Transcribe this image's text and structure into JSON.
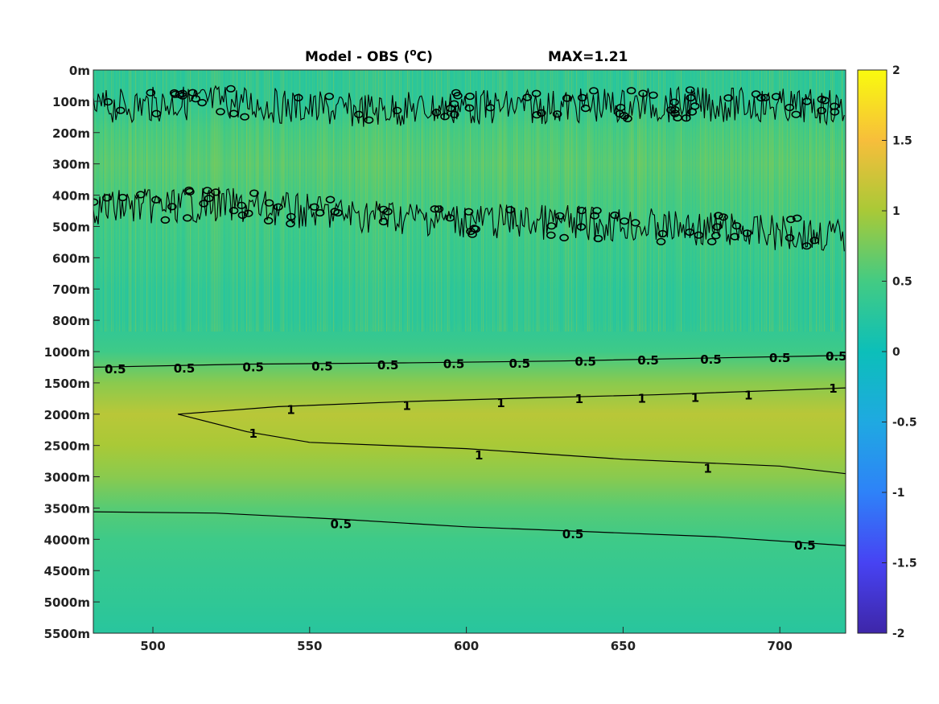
{
  "chart_data": {
    "type": "heatmap",
    "title": "Model - OBS (",
    "title_unit_sup": "o",
    "title_unit": "C)",
    "max_label": "MAX=1.21",
    "xlabel": "",
    "ylabel": "",
    "x_range": [
      481,
      721
    ],
    "x_ticks": [
      500,
      550,
      600,
      650,
      700
    ],
    "y_tick_labels": [
      "0m",
      "100m",
      "200m",
      "300m",
      "400m",
      "500m",
      "600m",
      "700m",
      "800m",
      "1000m",
      "1500m",
      "2000m",
      "2500m",
      "3000m",
      "3500m",
      "4000m",
      "4500m",
      "5000m",
      "5500m"
    ],
    "colorbar": {
      "clim": [
        -2,
        2
      ],
      "ticks": [
        2,
        1.5,
        1,
        0.5,
        0,
        -0.5,
        -1,
        -1.5,
        -2
      ],
      "tick_labels": [
        "2",
        "1.5",
        "1",
        "0.5",
        "0",
        "-0.5",
        "-1",
        "-1.5",
        "-2"
      ],
      "colormap": "parula"
    },
    "colormap_stops": [
      "#3e26a8",
      "#4743f3",
      "#2e82f8",
      "#1fa9e1",
      "#0cbfb9",
      "#43cb83",
      "#a9c937",
      "#f7be3b",
      "#f9fb0e"
    ],
    "depth_profile": [
      {
        "depth": "0m",
        "value": 0.3
      },
      {
        "depth": "100m",
        "value": 0.3
      },
      {
        "depth": "200m",
        "value": 0.55
      },
      {
        "depth": "300m",
        "value": 0.65
      },
      {
        "depth": "400m",
        "value": 0.55
      },
      {
        "depth": "500m",
        "value": 0.45
      },
      {
        "depth": "600m",
        "value": 0.4
      },
      {
        "depth": "700m",
        "value": 0.3
      },
      {
        "depth": "800m",
        "value": 0.3
      },
      {
        "depth": "1000m",
        "value": 0.45
      },
      {
        "depth": "1500m",
        "value": 0.85
      },
      {
        "depth": "2000m",
        "value": 1.1
      },
      {
        "depth": "2500m",
        "value": 1.0
      },
      {
        "depth": "3000m",
        "value": 0.85
      },
      {
        "depth": "3500m",
        "value": 0.6
      },
      {
        "depth": "4000m",
        "value": 0.45
      },
      {
        "depth": "4500m",
        "value": 0.38
      },
      {
        "depth": "5000m",
        "value": 0.33
      },
      {
        "depth": "5500m",
        "value": 0.25
      }
    ],
    "contours": [
      {
        "level": "0",
        "label": "0",
        "points": [
          [
            481,
            "120m"
          ],
          [
            520,
            "100m"
          ],
          [
            560,
            "130m"
          ],
          [
            600,
            "120m"
          ],
          [
            640,
            "115m"
          ],
          [
            680,
            "110m"
          ],
          [
            721,
            "120m"
          ]
        ]
      },
      {
        "level": "0",
        "label": "0",
        "points": [
          [
            481,
            "440m"
          ],
          [
            520,
            "430m"
          ],
          [
            560,
            "460m"
          ],
          [
            600,
            "480m"
          ],
          [
            640,
            "490m"
          ],
          [
            680,
            "510m"
          ],
          [
            721,
            "530m"
          ]
        ]
      },
      {
        "level": "0.5",
        "label": "0.5",
        "points": [
          [
            481,
            "1250m"
          ],
          [
            530,
            "1200m"
          ],
          [
            580,
            "1180m"
          ],
          [
            630,
            "1150m"
          ],
          [
            680,
            "1100m"
          ],
          [
            721,
            "1060m"
          ]
        ]
      },
      {
        "level": "1",
        "label": "1",
        "points": [
          [
            508,
            "2000m"
          ],
          [
            540,
            "1880m"
          ],
          [
            580,
            "1800m"
          ],
          [
            620,
            "1740m"
          ],
          [
            660,
            "1690m"
          ],
          [
            700,
            "1620m"
          ],
          [
            721,
            "1580m"
          ]
        ]
      },
      {
        "level": "1",
        "label": "1",
        "points": [
          [
            508,
            "2000m"
          ],
          [
            530,
            "2280m"
          ],
          [
            550,
            "2450m"
          ],
          [
            600,
            "2550m"
          ],
          [
            650,
            "2720m"
          ],
          [
            700,
            "2830m"
          ],
          [
            721,
            "2950m"
          ]
        ]
      },
      {
        "level": "0.5",
        "label": "0.5",
        "points": [
          [
            481,
            "3560m"
          ],
          [
            520,
            "3580m"
          ],
          [
            560,
            "3680m"
          ],
          [
            600,
            "3800m"
          ],
          [
            640,
            "3880m"
          ],
          [
            680,
            "3960m"
          ],
          [
            721,
            "4100m"
          ]
        ]
      }
    ],
    "contour_labels": [
      {
        "text": "0.5",
        "x": 488,
        "y": "1280m"
      },
      {
        "text": "0.5",
        "x": 510,
        "y": "1270m"
      },
      {
        "text": "0.5",
        "x": 532,
        "y": "1250m"
      },
      {
        "text": "0.5",
        "x": 554,
        "y": "1240m"
      },
      {
        "text": "0.5",
        "x": 575,
        "y": "1220m"
      },
      {
        "text": "0.5",
        "x": 596,
        "y": "1200m"
      },
      {
        "text": "0.5",
        "x": 617,
        "y": "1190m"
      },
      {
        "text": "0.5",
        "x": 638,
        "y": "1160m"
      },
      {
        "text": "0.5",
        "x": 658,
        "y": "1140m"
      },
      {
        "text": "0.5",
        "x": 678,
        "y": "1130m"
      },
      {
        "text": "0.5",
        "x": 700,
        "y": "1100m"
      },
      {
        "text": "0.5",
        "x": 718,
        "y": "1080m"
      },
      {
        "text": "1",
        "x": 544,
        "y": "1930m"
      },
      {
        "text": "1",
        "x": 581,
        "y": "1870m"
      },
      {
        "text": "1",
        "x": 611,
        "y": "1820m"
      },
      {
        "text": "1",
        "x": 636,
        "y": "1760m"
      },
      {
        "text": "1",
        "x": 656,
        "y": "1750m"
      },
      {
        "text": "1",
        "x": 673,
        "y": "1740m"
      },
      {
        "text": "1",
        "x": 690,
        "y": "1700m"
      },
      {
        "text": "1",
        "x": 717,
        "y": "1590m"
      },
      {
        "text": "1",
        "x": 532,
        "y": "2310m"
      },
      {
        "text": "1",
        "x": 604,
        "y": "2660m"
      },
      {
        "text": "1",
        "x": 677,
        "y": "2870m"
      },
      {
        "text": "0.5",
        "x": 560,
        "y": "3760m"
      },
      {
        "text": "0.5",
        "x": 634,
        "y": "3920m"
      },
      {
        "text": "0.5",
        "x": 708,
        "y": "4100m"
      }
    ]
  }
}
